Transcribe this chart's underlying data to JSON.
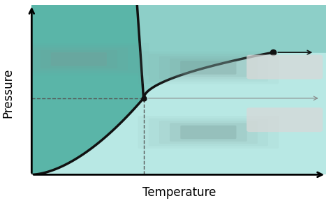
{
  "title": "",
  "xlabel": "Temperature",
  "ylabel": "Pressure",
  "bg_color": "#ffffff",
  "solid_region_color": "#5ab5a8",
  "liquid_region_color": "#8dcfc8",
  "gas_region_color": "#b8e8e4",
  "curve_color": "#111111",
  "dashed_color": "#555555",
  "triple_point": [
    0.38,
    0.45
  ],
  "critical_point": [
    0.82,
    0.72
  ],
  "xlim": [
    0,
    1.0
  ],
  "ylim": [
    0,
    1.0
  ],
  "xlabel_fontsize": 12,
  "ylabel_fontsize": 12
}
